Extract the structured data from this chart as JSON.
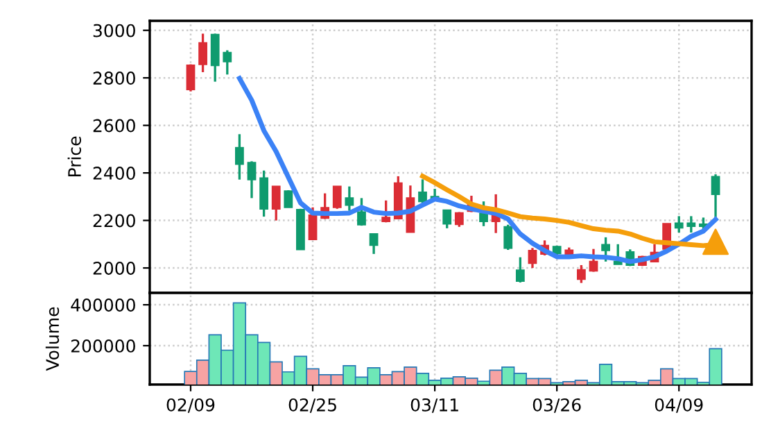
{
  "chart_data": [
    {
      "type": "candlestick",
      "ylabel": "Price",
      "categories": [
        null,
        null,
        null,
        null,
        null,
        null,
        null,
        null,
        null,
        null,
        null,
        null,
        null,
        null,
        null,
        null,
        null,
        null,
        null,
        null,
        null,
        null,
        null,
        null,
        null,
        null,
        null,
        null,
        null,
        null,
        null,
        null,
        null,
        null,
        null,
        null,
        null,
        null,
        null,
        null,
        null,
        null,
        null,
        null
      ],
      "ohlc": [
        [
          2853,
          2857,
          2743,
          2751
        ],
        [
          2947,
          2986,
          2824,
          2857
        ],
        [
          2853,
          2986,
          2784,
          2982
        ],
        [
          2869,
          2916,
          2814,
          2906
        ],
        [
          2437,
          2563,
          2372,
          2506
        ],
        [
          2372,
          2449,
          2294,
          2443
        ],
        [
          2249,
          2410,
          2216,
          2378
        ],
        [
          2343,
          2343,
          2200,
          2249
        ],
        [
          2255,
          2327,
          2255,
          2323
        ],
        [
          2078,
          2249,
          2078,
          2245
        ],
        [
          2222,
          2255,
          2120,
          2120
        ],
        [
          2253,
          2314,
          2206,
          2210
        ],
        [
          2343,
          2343,
          2249,
          2255
        ],
        [
          2265,
          2343,
          2241,
          2294
        ],
        [
          2182,
          2294,
          2178,
          2235
        ],
        [
          2096,
          2143,
          2059,
          2143
        ],
        [
          2212,
          2284,
          2192,
          2196
        ],
        [
          2357,
          2386,
          2208,
          2208
        ],
        [
          2294,
          2347,
          2151,
          2151
        ],
        [
          2280,
          2373,
          2274,
          2318
        ],
        [
          2290,
          2333,
          2284,
          2300
        ],
        [
          2186,
          2243,
          2167,
          2243
        ],
        [
          2231,
          2235,
          2173,
          2184
        ],
        [
          2265,
          2304,
          2235,
          2239
        ],
        [
          2196,
          2280,
          2176,
          2229
        ],
        [
          2245,
          2310,
          2147,
          2196
        ],
        [
          2084,
          2182,
          2076,
          2173
        ],
        [
          1945,
          2045,
          1939,
          1990
        ],
        [
          2073,
          2084,
          2000,
          2020
        ],
        [
          2094,
          2116,
          2053,
          2059
        ],
        [
          2061,
          2094,
          2055,
          2090
        ],
        [
          2074,
          2086,
          2051,
          2055
        ],
        [
          1992,
          2012,
          1937,
          1953
        ],
        [
          2027,
          2080,
          1984,
          1988
        ],
        [
          2074,
          2129,
          2027,
          2098
        ],
        [
          2016,
          2100,
          2016,
          2027
        ],
        [
          2012,
          2078,
          2008,
          2067
        ],
        [
          2047,
          2051,
          2008,
          2012
        ],
        [
          2065,
          2100,
          2024,
          2027
        ],
        [
          2186,
          2186,
          2080,
          2080
        ],
        [
          2169,
          2218,
          2149,
          2188
        ],
        [
          2176,
          2218,
          2149,
          2188
        ],
        [
          2176,
          2212,
          2159,
          2184
        ],
        [
          2310,
          2394,
          2208,
          2384
        ]
      ],
      "colors": [
        "#db2d35",
        "#db2d35",
        "#0f9b6e",
        "#0f9b6e",
        "#0f9b6e",
        "#0f9b6e",
        "#0f9b6e",
        "#db2d35",
        "#0f9b6e",
        "#0f9b6e",
        "#db2d35",
        "#db2d35",
        "#db2d35",
        "#0f9b6e",
        "#0f9b6e",
        "#0f9b6e",
        "#db2d35",
        "#db2d35",
        "#db2d35",
        "#0f9b6e",
        "#0f9b6e",
        "#0f9b6e",
        "#db2d35",
        "#db2d35",
        "#0f9b6e",
        "#db2d35",
        "#0f9b6e",
        "#0f9b6e",
        "#db2d35",
        "#db2d35",
        "#0f9b6e",
        "#db2d35",
        "#db2d35",
        "#db2d35",
        "#0f9b6e",
        "#0f9b6e",
        "#0f9b6e",
        "#db2d35",
        "#db2d35",
        "#db2d35",
        "#0f9b6e",
        "#0f9b6e",
        "#0f9b6e",
        "#0f9b6e"
      ],
      "series": [
        {
          "type": "line",
          "color": "#3b82f6",
          "values": [
            null,
            null,
            null,
            null,
            2798,
            2706,
            2578,
            2490,
            2382,
            2274,
            2231,
            2229,
            2229,
            2231,
            2255,
            2235,
            2229,
            2231,
            2239,
            2265,
            2290,
            2280,
            2261,
            2249,
            2239,
            2229,
            2206,
            2143,
            2104,
            2073,
            2047,
            2047,
            2051,
            2047,
            2045,
            2039,
            2027,
            2035,
            2047,
            2071,
            2100,
            2133,
            2155,
            2204
          ]
        },
        {
          "type": "line",
          "color": "#f59e0b",
          "values": [
            null,
            null,
            null,
            null,
            null,
            null,
            null,
            null,
            null,
            null,
            null,
            null,
            null,
            null,
            null,
            null,
            null,
            null,
            null,
            2386,
            2359,
            2329,
            2300,
            2269,
            2253,
            2245,
            2231,
            2216,
            2210,
            2206,
            2200,
            2192,
            2178,
            2165,
            2159,
            2155,
            2143,
            2125,
            2110,
            2106,
            2102,
            2098,
            2094,
            2098
          ]
        },
        {
          "type": "scatter",
          "marker": "triangle",
          "color": "#f59e0b",
          "values": [
            null,
            null,
            null,
            null,
            null,
            null,
            null,
            null,
            null,
            null,
            null,
            null,
            null,
            null,
            null,
            null,
            null,
            null,
            null,
            null,
            null,
            null,
            null,
            null,
            null,
            null,
            null,
            null,
            null,
            null,
            null,
            null,
            null,
            null,
            null,
            null,
            null,
            null,
            null,
            null,
            null,
            null,
            null,
            2110
          ]
        }
      ],
      "ylim": [
        1895,
        3040
      ],
      "yticks": [
        2000,
        2200,
        2400,
        2600,
        2800,
        3000
      ],
      "grid": true,
      "tick_labels": "y"
    },
    {
      "type": "bar",
      "ylabel": "Volume",
      "categories": [
        "02/09",
        null,
        null,
        null,
        null,
        null,
        null,
        null,
        null,
        null,
        "02/25",
        null,
        null,
        null,
        null,
        null,
        null,
        null,
        null,
        null,
        "03/11",
        null,
        null,
        null,
        null,
        null,
        null,
        null,
        null,
        null,
        "03/26",
        null,
        null,
        null,
        null,
        null,
        null,
        null,
        null,
        null,
        "04/09",
        null,
        null,
        null
      ],
      "values": [
        74000,
        129000,
        253000,
        178000,
        409000,
        253000,
        216000,
        121000,
        72000,
        148000,
        87000,
        58000,
        58000,
        102000,
        46000,
        92000,
        58000,
        73000,
        95000,
        65000,
        31000,
        41000,
        48000,
        41000,
        26000,
        80000,
        95000,
        65000,
        39000,
        39000,
        19000,
        24000,
        31000,
        19000,
        109000,
        24000,
        24000,
        19000,
        31000,
        87000,
        39000,
        39000,
        21000,
        185000
      ],
      "colors": [
        "#f7a3a3",
        "#f7a3a3",
        "#6ee7b7",
        "#6ee7b7",
        "#6ee7b7",
        "#6ee7b7",
        "#6ee7b7",
        "#f7a3a3",
        "#6ee7b7",
        "#6ee7b7",
        "#f7a3a3",
        "#f7a3a3",
        "#f7a3a3",
        "#6ee7b7",
        "#6ee7b7",
        "#6ee7b7",
        "#f7a3a3",
        "#f7a3a3",
        "#f7a3a3",
        "#6ee7b7",
        "#6ee7b7",
        "#6ee7b7",
        "#f7a3a3",
        "#f7a3a3",
        "#6ee7b7",
        "#f7a3a3",
        "#6ee7b7",
        "#6ee7b7",
        "#f7a3a3",
        "#f7a3a3",
        "#6ee7b7",
        "#f7a3a3",
        "#f7a3a3",
        "#6ee7b7",
        "#6ee7b7",
        "#6ee7b7",
        "#6ee7b7",
        "#6ee7b7",
        "#f7a3a3",
        "#f7a3a3",
        "#6ee7b7",
        "#6ee7b7",
        "#6ee7b7",
        "#6ee7b7"
      ],
      "ylim": [
        10000,
        458000
      ],
      "yticks": [
        200000,
        400000
      ],
      "grid": true
    }
  ]
}
